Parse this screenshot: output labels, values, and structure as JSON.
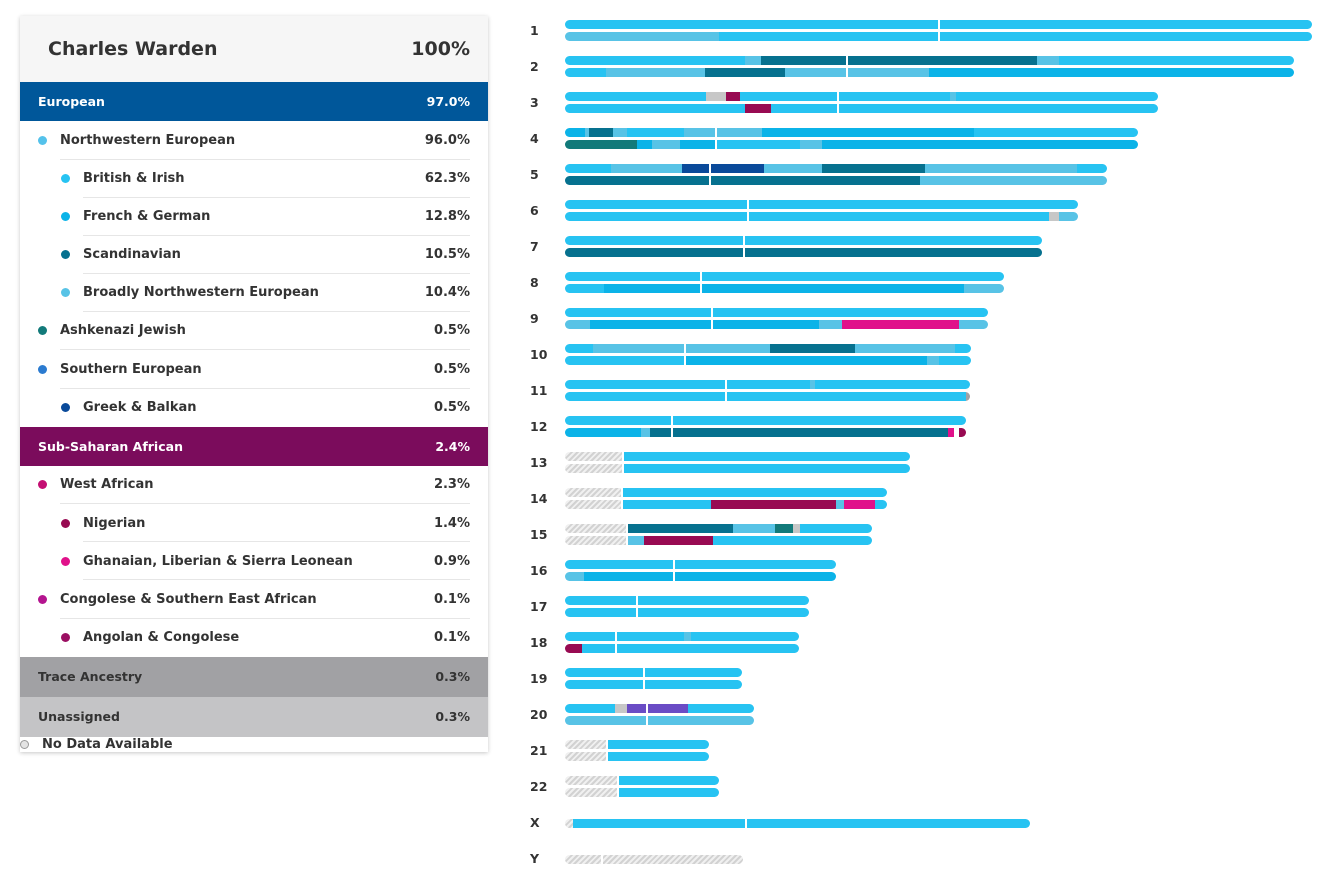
{
  "colors": {
    "european": "#00579a",
    "northwestern": "#54c2eb",
    "british_irish": "#27c3f2",
    "french_german": "#0bb3e8",
    "scandinavian": "#06718f",
    "broad_nw": "#58c3e6",
    "ashkenazi": "#127a7a",
    "southern": "#2b7bd0",
    "greek": "#0a4a9a",
    "subsaharan": "#7b0c5c",
    "west_african": "#c40f73",
    "nigerian": "#980a52",
    "ghanaian": "#e0118a",
    "congolese": "#b4148f",
    "angolan": "#9b0f62",
    "trace": "#a1a1a4",
    "unassigned": "#c4c4c6",
    "grey_seg": "#c7c7c7",
    "purple": "#6a4cc5"
  },
  "panel": {
    "name": "Charles Warden",
    "total": "100%",
    "rows": [
      {
        "kind": "group",
        "label": "European",
        "value": "97.0%",
        "color": "#00579a",
        "name": "european-group"
      },
      {
        "kind": "region",
        "label": "Northwestern European",
        "value": "96.0%",
        "color": "#54c2eb",
        "name": "northwestern-european"
      },
      {
        "kind": "sub",
        "label": "British & Irish",
        "value": "62.3%",
        "color": "#27c3f2",
        "name": "british-irish"
      },
      {
        "kind": "sub",
        "label": "French & German",
        "value": "12.8%",
        "color": "#0bb3e8",
        "name": "french-german"
      },
      {
        "kind": "sub",
        "label": "Scandinavian",
        "value": "10.5%",
        "color": "#06718f",
        "name": "scandinavian"
      },
      {
        "kind": "sub",
        "label": "Broadly Northwestern European",
        "value": "10.4%",
        "color": "#58c3e6",
        "name": "broadly-northwestern-european"
      },
      {
        "kind": "region",
        "label": "Ashkenazi Jewish",
        "value": "0.5%",
        "color": "#127a7a",
        "name": "ashkenazi-jewish"
      },
      {
        "kind": "region",
        "label": "Southern European",
        "value": "0.5%",
        "color": "#2b7bd0",
        "name": "southern-european"
      },
      {
        "kind": "sub",
        "label": "Greek & Balkan",
        "value": "0.5%",
        "color": "#0a4a9a",
        "name": "greek-balkan",
        "last": true
      },
      {
        "kind": "group",
        "label": "Sub-Saharan African",
        "value": "2.4%",
        "color": "#7b0c5c",
        "name": "sub-saharan-african-group"
      },
      {
        "kind": "region",
        "label": "West African",
        "value": "2.3%",
        "color": "#c40f73",
        "name": "west-african"
      },
      {
        "kind": "sub",
        "label": "Nigerian",
        "value": "1.4%",
        "color": "#980a52",
        "name": "nigerian"
      },
      {
        "kind": "sub",
        "label": "Ghanaian, Liberian & Sierra Leonean",
        "value": "0.9%",
        "color": "#e0118a",
        "name": "ghanaian-liberian-sierra-leonean"
      },
      {
        "kind": "region",
        "label": "Congolese & Southern East African",
        "value": "0.1%",
        "color": "#b4148f",
        "name": "congolese-southern-east-african"
      },
      {
        "kind": "sub",
        "label": "Angolan & Congolese",
        "value": "0.1%",
        "color": "#9b0f62",
        "name": "angolan-congolese",
        "last": true
      },
      {
        "kind": "trace",
        "label": "Trace Ancestry",
        "value": "0.3%",
        "name": "trace-ancestry"
      },
      {
        "kind": "unassigned",
        "label": "Unassigned",
        "value": "0.3%",
        "name": "unassigned"
      },
      {
        "kind": "nodata",
        "label": "No Data Available",
        "value": "",
        "name": "no-data-available"
      }
    ]
  },
  "chromosomes": [
    {
      "label": "1",
      "length": 747,
      "cent": 374,
      "a": [
        [
          0,
          154,
          "#27c3f2"
        ],
        [
          154,
          593,
          "#27c3f2"
        ]
      ],
      "b": [
        [
          0,
          154,
          "#58c3e6"
        ],
        [
          154,
          593,
          "#27c3f2"
        ]
      ]
    },
    {
      "label": "2",
      "length": 729,
      "cent": 282,
      "a": [
        [
          0,
          180,
          "#27c3f2"
        ],
        [
          180,
          16,
          "#58c3e6"
        ],
        [
          196,
          86,
          "#06718f"
        ],
        [
          282,
          190,
          "#06718f"
        ],
        [
          472,
          22,
          "#58c3e6"
        ],
        [
          494,
          235,
          "#27c3f2"
        ]
      ],
      "b": [
        [
          0,
          41,
          "#27c3f2"
        ],
        [
          41,
          99,
          "#58c3e6"
        ],
        [
          140,
          80,
          "#06718f"
        ],
        [
          220,
          62,
          "#58c3e6"
        ],
        [
          282,
          82,
          "#58c3e6"
        ],
        [
          364,
          365,
          "#0bb3e8"
        ]
      ]
    },
    {
      "label": "3",
      "length": 593,
      "cent": 273,
      "a": [
        [
          0,
          141,
          "#27c3f2"
        ],
        [
          141,
          20,
          "#c7c7c7"
        ],
        [
          161,
          14,
          "#980a52"
        ],
        [
          175,
          98,
          "#27c3f2"
        ],
        [
          273,
          112,
          "#27c3f2"
        ],
        [
          385,
          6,
          "#58c3e6"
        ],
        [
          391,
          202,
          "#27c3f2"
        ]
      ],
      "b": [
        [
          0,
          180,
          "#27c3f2"
        ],
        [
          180,
          26,
          "#980a52"
        ],
        [
          206,
          67,
          "#27c3f2"
        ],
        [
          273,
          320,
          "#27c3f2"
        ]
      ]
    },
    {
      "label": "4",
      "length": 573,
      "cent": 151,
      "a": [
        [
          0,
          20,
          "#0bb3e8"
        ],
        [
          20,
          4,
          "#58c3e6"
        ],
        [
          24,
          24,
          "#06718f"
        ],
        [
          48,
          14,
          "#58c3e6"
        ],
        [
          62,
          57,
          "#27c3f2"
        ],
        [
          119,
          32,
          "#58c3e6"
        ],
        [
          151,
          46,
          "#58c3e6"
        ],
        [
          197,
          212,
          "#0bb3e8"
        ],
        [
          409,
          164,
          "#27c3f2"
        ]
      ],
      "b": [
        [
          0,
          72,
          "#127a7a"
        ],
        [
          72,
          15,
          "#0bb3e8"
        ],
        [
          87,
          28,
          "#58c3e6"
        ],
        [
          115,
          36,
          "#0bb3e8"
        ],
        [
          151,
          84,
          "#27c3f2"
        ],
        [
          235,
          22,
          "#58c3e6"
        ],
        [
          257,
          316,
          "#0bb3e8"
        ]
      ]
    },
    {
      "label": "5",
      "length": 542,
      "cent": 145,
      "a": [
        [
          0,
          46,
          "#27c3f2"
        ],
        [
          46,
          71,
          "#58c3e6"
        ],
        [
          117,
          28,
          "#0a4a9a"
        ],
        [
          145,
          54,
          "#0a4a9a"
        ],
        [
          199,
          58,
          "#58c3e6"
        ],
        [
          257,
          103,
          "#06718f"
        ],
        [
          360,
          152,
          "#58c3e6"
        ],
        [
          512,
          30,
          "#27c3f2"
        ]
      ],
      "b": [
        [
          0,
          145,
          "#06718f"
        ],
        [
          145,
          210,
          "#06718f"
        ],
        [
          355,
          187,
          "#58c3e6"
        ]
      ]
    },
    {
      "label": "6",
      "length": 513,
      "cent": 183,
      "a": [
        [
          0,
          183,
          "#27c3f2"
        ],
        [
          183,
          330,
          "#27c3f2"
        ]
      ],
      "b": [
        [
          0,
          183,
          "#27c3f2"
        ],
        [
          183,
          301,
          "#27c3f2"
        ],
        [
          484,
          10,
          "#c7c7c7"
        ],
        [
          494,
          19,
          "#58c3e6"
        ]
      ]
    },
    {
      "label": "7",
      "length": 477,
      "cent": 179,
      "a": [
        [
          0,
          179,
          "#27c3f2"
        ],
        [
          179,
          298,
          "#27c3f2"
        ]
      ],
      "b": [
        [
          0,
          179,
          "#06718f"
        ],
        [
          179,
          298,
          "#06718f"
        ]
      ]
    },
    {
      "label": "8",
      "length": 439,
      "cent": 136,
      "a": [
        [
          0,
          136,
          "#27c3f2"
        ],
        [
          136,
          303,
          "#27c3f2"
        ]
      ],
      "b": [
        [
          0,
          39,
          "#27c3f2"
        ],
        [
          39,
          97,
          "#0bb3e8"
        ],
        [
          136,
          263,
          "#0bb3e8"
        ],
        [
          399,
          40,
          "#58c3e6"
        ]
      ]
    },
    {
      "label": "9",
      "length": 423,
      "cent": 147,
      "a": [
        [
          0,
          147,
          "#27c3f2"
        ],
        [
          147,
          276,
          "#27c3f2"
        ]
      ],
      "b": [
        [
          0,
          25,
          "#58c3e6"
        ],
        [
          25,
          122,
          "#0bb3e8"
        ],
        [
          147,
          107,
          "#0bb3e8"
        ],
        [
          254,
          23,
          "#58c3e6"
        ],
        [
          277,
          117,
          "#e0118a"
        ],
        [
          394,
          29,
          "#58c3e6"
        ]
      ]
    },
    {
      "label": "10",
      "length": 406,
      "cent": 120,
      "a": [
        [
          0,
          28,
          "#27c3f2"
        ],
        [
          28,
          92,
          "#58c3e6"
        ],
        [
          120,
          85,
          "#58c3e6"
        ],
        [
          205,
          85,
          "#06718f"
        ],
        [
          290,
          100,
          "#58c3e6"
        ],
        [
          390,
          16,
          "#27c3f2"
        ]
      ],
      "b": [
        [
          0,
          120,
          "#27c3f2"
        ],
        [
          120,
          242,
          "#0bb3e8"
        ],
        [
          362,
          12,
          "#58c3e6"
        ],
        [
          374,
          32,
          "#27c3f2"
        ]
      ]
    },
    {
      "label": "11",
      "length": 405,
      "cent": 161,
      "a": [
        [
          0,
          161,
          "#27c3f2"
        ],
        [
          161,
          84,
          "#27c3f2"
        ],
        [
          245,
          5,
          "#58c3e6"
        ],
        [
          250,
          155,
          "#27c3f2"
        ]
      ],
      "b": [
        [
          0,
          161,
          "#27c3f2"
        ],
        [
          161,
          240,
          "#27c3f2"
        ],
        [
          401,
          4,
          "#a1a1a4"
        ]
      ]
    },
    {
      "label": "12",
      "length": 401,
      "cent": 107,
      "a": [
        [
          0,
          107,
          "#27c3f2"
        ],
        [
          107,
          294,
          "#27c3f2"
        ]
      ],
      "b": [
        [
          0,
          76,
          "#0bb3e8"
        ],
        [
          76,
          9,
          "#58c3e6"
        ],
        [
          85,
          22,
          "#06718f"
        ],
        [
          107,
          276,
          "#06718f"
        ],
        [
          383,
          6,
          "#e0118a"
        ],
        [
          389,
          5,
          "#ffffff"
        ],
        [
          394,
          7,
          "#980a52"
        ]
      ]
    },
    {
      "label": "13",
      "length": 345,
      "cent": 58,
      "hatch": 58,
      "a": [
        [
          58,
          287,
          "#27c3f2"
        ]
      ],
      "b": [
        [
          58,
          287,
          "#27c3f2"
        ]
      ]
    },
    {
      "label": "14",
      "length": 322,
      "cent": 57,
      "hatch": 57,
      "a": [
        [
          57,
          265,
          "#27c3f2"
        ]
      ],
      "b": [
        [
          57,
          89,
          "#27c3f2"
        ],
        [
          146,
          125,
          "#980a52"
        ],
        [
          271,
          8,
          "#58c3e6"
        ],
        [
          279,
          31,
          "#e0118a"
        ],
        [
          310,
          12,
          "#27c3f2"
        ]
      ]
    },
    {
      "label": "15",
      "length": 307,
      "cent": 62,
      "hatch": 62,
      "a": [
        [
          62,
          106,
          "#06718f"
        ],
        [
          168,
          42,
          "#58c3e6"
        ],
        [
          210,
          18,
          "#127a7a"
        ],
        [
          228,
          7,
          "#c7c7c7"
        ],
        [
          235,
          72,
          "#27c3f2"
        ]
      ],
      "b": [
        [
          62,
          17,
          "#58c3e6"
        ],
        [
          79,
          69,
          "#980a52"
        ],
        [
          148,
          159,
          "#27c3f2"
        ]
      ]
    },
    {
      "label": "16",
      "length": 271,
      "cent": 109,
      "a": [
        [
          0,
          109,
          "#27c3f2"
        ],
        [
          109,
          162,
          "#27c3f2"
        ]
      ],
      "b": [
        [
          0,
          19,
          "#58c3e6"
        ],
        [
          19,
          90,
          "#0bb3e8"
        ],
        [
          109,
          162,
          "#0bb3e8"
        ]
      ]
    },
    {
      "label": "17",
      "length": 244,
      "cent": 72,
      "a": [
        [
          0,
          72,
          "#27c3f2"
        ],
        [
          72,
          172,
          "#27c3f2"
        ]
      ],
      "b": [
        [
          0,
          72,
          "#27c3f2"
        ],
        [
          72,
          172,
          "#27c3f2"
        ]
      ]
    },
    {
      "label": "18",
      "length": 234,
      "cent": 51,
      "a": [
        [
          0,
          51,
          "#27c3f2"
        ],
        [
          51,
          68,
          "#27c3f2"
        ],
        [
          119,
          7,
          "#58c3e6"
        ],
        [
          126,
          108,
          "#27c3f2"
        ]
      ],
      "b": [
        [
          0,
          17,
          "#980a52"
        ],
        [
          17,
          34,
          "#27c3f2"
        ],
        [
          51,
          183,
          "#27c3f2"
        ]
      ]
    },
    {
      "label": "19",
      "length": 177,
      "cent": 79,
      "a": [
        [
          0,
          79,
          "#27c3f2"
        ],
        [
          79,
          98,
          "#27c3f2"
        ]
      ],
      "b": [
        [
          0,
          79,
          "#27c3f2"
        ],
        [
          79,
          98,
          "#27c3f2"
        ]
      ]
    },
    {
      "label": "20",
      "length": 189,
      "cent": 82,
      "a": [
        [
          0,
          50,
          "#27c3f2"
        ],
        [
          50,
          12,
          "#c7c7c7"
        ],
        [
          62,
          20,
          "#6a4cc5"
        ],
        [
          82,
          41,
          "#6a4cc5"
        ],
        [
          123,
          66,
          "#27c3f2"
        ]
      ],
      "b": [
        [
          0,
          82,
          "#58c3e6"
        ],
        [
          82,
          107,
          "#58c3e6"
        ]
      ]
    },
    {
      "label": "21",
      "length": 144,
      "cent": 42,
      "hatch": 42,
      "a": [
        [
          42,
          102,
          "#27c3f2"
        ]
      ],
      "b": [
        [
          42,
          102,
          "#27c3f2"
        ]
      ]
    },
    {
      "label": "22",
      "length": 154,
      "cent": 53,
      "hatch": 53,
      "a": [
        [
          53,
          101,
          "#27c3f2"
        ]
      ],
      "b": [
        [
          53,
          101,
          "#27c3f2"
        ]
      ]
    },
    {
      "label": "X",
      "length": 465,
      "cent": 181,
      "hatch": 8,
      "single": true,
      "a": [
        [
          8,
          173,
          "#27c3f2"
        ],
        [
          181,
          284,
          "#27c3f2"
        ]
      ]
    },
    {
      "label": "Y",
      "length": 178,
      "cent": 37,
      "hatch": 178,
      "single": true,
      "a": []
    }
  ]
}
